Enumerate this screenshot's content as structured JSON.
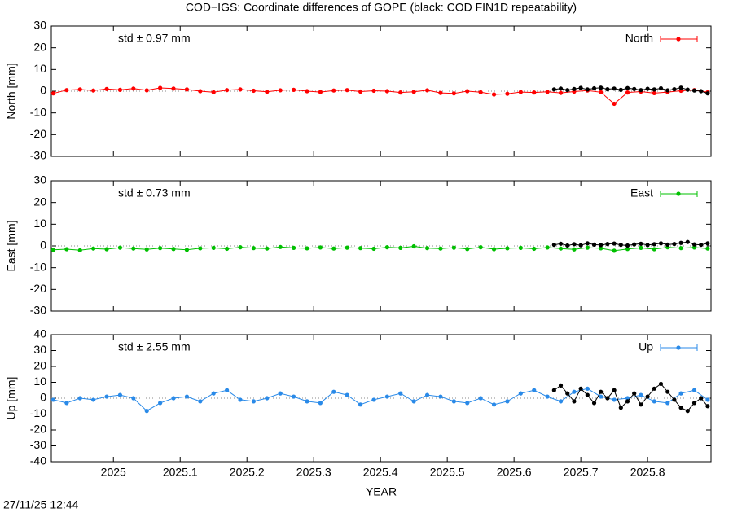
{
  "title": "COD−IGS: Coordinate differences of GOPE (black: COD FIN1D repeatability)",
  "timestamp": "27/11/25 12:44",
  "chart_data": [
    {
      "type": "line",
      "ylabel": "North [mm]",
      "annotation": "std ± 0.97 mm",
      "xlim": [
        2024.907,
        2025.895
      ],
      "xticks": [
        2025,
        2025.1,
        2025.2,
        2025.3,
        2025.4,
        2025.5,
        2025.6,
        2025.7,
        2025.8
      ],
      "ylim": [
        -30,
        30
      ],
      "yticks": [
        -30,
        -20,
        -10,
        0,
        10,
        20,
        30
      ],
      "legend": "top-right",
      "series": [
        {
          "name": "North",
          "color": "#ff0000",
          "x": [
            2024.91,
            2024.93,
            2024.95,
            2024.97,
            2024.99,
            2025.01,
            2025.03,
            2025.05,
            2025.07,
            2025.09,
            2025.11,
            2025.13,
            2025.15,
            2025.17,
            2025.19,
            2025.21,
            2025.23,
            2025.25,
            2025.27,
            2025.29,
            2025.31,
            2025.33,
            2025.35,
            2025.37,
            2025.39,
            2025.41,
            2025.43,
            2025.45,
            2025.47,
            2025.49,
            2025.51,
            2025.53,
            2025.55,
            2025.57,
            2025.59,
            2025.61,
            2025.63,
            2025.65,
            2025.67,
            2025.69,
            2025.71,
            2025.73,
            2025.75,
            2025.77,
            2025.79,
            2025.81,
            2025.83,
            2025.85,
            2025.87,
            2025.89
          ],
          "values": [
            -1,
            0.5,
            0.8,
            0.3,
            1,
            0.6,
            1.2,
            0.4,
            1.5,
            1.2,
            0.8,
            0,
            -0.5,
            0.5,
            0.8,
            0.2,
            -0.3,
            0.4,
            0.6,
            0,
            -0.4,
            0.3,
            0.5,
            -0.2,
            0.2,
            0,
            -0.6,
            -0.3,
            0.4,
            -0.8,
            -1,
            0,
            -0.5,
            -1.5,
            -1.2,
            -0.4,
            -0.6,
            -0.3,
            -0.8,
            -0.2,
            0.3,
            -0.5,
            -5.8,
            -0.6,
            -0.2,
            -0.9,
            -0.4,
            0.2,
            0.5,
            -0.5
          ]
        },
        {
          "color": "#000000",
          "x": [
            2025.66,
            2025.67,
            2025.68,
            2025.69,
            2025.7,
            2025.71,
            2025.72,
            2025.73,
            2025.74,
            2025.75,
            2025.76,
            2025.77,
            2025.78,
            2025.79,
            2025.8,
            2025.81,
            2025.82,
            2025.83,
            2025.84,
            2025.85,
            2025.86,
            2025.87,
            2025.88,
            2025.89
          ],
          "values": [
            0.8,
            1.2,
            0.5,
            1,
            1.5,
            0.8,
            1.3,
            1.6,
            0.9,
            1.2,
            0.6,
            1.4,
            1,
            0.5,
            1.1,
            0.8,
            1.3,
            0.4,
            0.9,
            1.6,
            0.7,
            0.3,
            0,
            -1
          ]
        }
      ]
    },
    {
      "type": "line",
      "ylabel": "East [mm]",
      "annotation": "std ± 0.73 mm",
      "xlim": [
        2024.907,
        2025.895
      ],
      "xticks": [
        2025,
        2025.1,
        2025.2,
        2025.3,
        2025.4,
        2025.5,
        2025.6,
        2025.7,
        2025.8
      ],
      "ylim": [
        -30,
        30
      ],
      "yticks": [
        -30,
        -20,
        -10,
        0,
        10,
        20,
        30
      ],
      "legend": "top-right",
      "series": [
        {
          "name": "East",
          "color": "#00c000",
          "x": [
            2024.91,
            2024.93,
            2024.95,
            2024.97,
            2024.99,
            2025.01,
            2025.03,
            2025.05,
            2025.07,
            2025.09,
            2025.11,
            2025.13,
            2025.15,
            2025.17,
            2025.19,
            2025.21,
            2025.23,
            2025.25,
            2025.27,
            2025.29,
            2025.31,
            2025.33,
            2025.35,
            2025.37,
            2025.39,
            2025.41,
            2025.43,
            2025.45,
            2025.47,
            2025.49,
            2025.51,
            2025.53,
            2025.55,
            2025.57,
            2025.59,
            2025.61,
            2025.63,
            2025.65,
            2025.67,
            2025.69,
            2025.71,
            2025.73,
            2025.75,
            2025.77,
            2025.79,
            2025.81,
            2025.83,
            2025.85,
            2025.87,
            2025.89
          ],
          "values": [
            -1.8,
            -1.5,
            -2,
            -1.2,
            -1.5,
            -0.8,
            -1.2,
            -1.6,
            -1,
            -1.4,
            -1.8,
            -1.1,
            -0.9,
            -1.3,
            -0.6,
            -1,
            -1.2,
            -0.5,
            -0.9,
            -1.1,
            -0.7,
            -1.2,
            -0.8,
            -1,
            -1.3,
            -0.6,
            -0.9,
            -0.2,
            -1,
            -1.2,
            -0.8,
            -1.4,
            -0.6,
            -1.5,
            -1.1,
            -0.9,
            -1.3,
            -0.7,
            -1.2,
            -1.6,
            -0.8,
            -1.1,
            -2.2,
            -1.4,
            -0.9,
            -1.5,
            -0.6,
            -1,
            -0.7,
            -1.2
          ]
        },
        {
          "color": "#000000",
          "x": [
            2025.66,
            2025.67,
            2025.68,
            2025.69,
            2025.7,
            2025.71,
            2025.72,
            2025.73,
            2025.74,
            2025.75,
            2025.76,
            2025.77,
            2025.78,
            2025.79,
            2025.8,
            2025.81,
            2025.82,
            2025.83,
            2025.84,
            2025.85,
            2025.86,
            2025.87,
            2025.88,
            2025.89
          ],
          "values": [
            0.5,
            1,
            0.2,
            0.8,
            0.3,
            1.2,
            0.6,
            0.4,
            0.9,
            1.1,
            0.5,
            0.2,
            0.7,
            1,
            0.4,
            0.8,
            1.2,
            0.6,
            0.9,
            1.4,
            1.8,
            0.7,
            0.5,
            1.2
          ]
        }
      ]
    },
    {
      "type": "line",
      "ylabel": "Up [mm]",
      "annotation": "std ± 2.55 mm",
      "xlabel": "YEAR",
      "xlim": [
        2024.907,
        2025.895
      ],
      "xticks": [
        2025,
        2025.1,
        2025.2,
        2025.3,
        2025.4,
        2025.5,
        2025.6,
        2025.7,
        2025.8
      ],
      "ylim": [
        -40,
        40
      ],
      "yticks": [
        -40,
        -30,
        -20,
        -10,
        0,
        10,
        20,
        30,
        40
      ],
      "legend": "top-right",
      "series": [
        {
          "name": "Up",
          "color": "#2a8ae8",
          "x": [
            2024.91,
            2024.93,
            2024.95,
            2024.97,
            2024.99,
            2025.01,
            2025.03,
            2025.05,
            2025.07,
            2025.09,
            2025.11,
            2025.13,
            2025.15,
            2025.17,
            2025.19,
            2025.21,
            2025.23,
            2025.25,
            2025.27,
            2025.29,
            2025.31,
            2025.33,
            2025.35,
            2025.37,
            2025.39,
            2025.41,
            2025.43,
            2025.45,
            2025.47,
            2025.49,
            2025.51,
            2025.53,
            2025.55,
            2025.57,
            2025.59,
            2025.61,
            2025.63,
            2025.65,
            2025.67,
            2025.69,
            2025.71,
            2025.73,
            2025.75,
            2025.77,
            2025.79,
            2025.81,
            2025.83,
            2025.85,
            2025.87,
            2025.89
          ],
          "values": [
            -1,
            -3,
            0,
            -1,
            1,
            2,
            0,
            -8,
            -3,
            0,
            1,
            -2,
            3,
            5,
            -1,
            -2,
            0,
            3,
            1,
            -2,
            -3,
            4,
            2,
            -4,
            -1,
            1,
            3,
            -2,
            2,
            1,
            -2,
            -3,
            0,
            -4,
            -2,
            3,
            5,
            1,
            -2,
            4,
            6,
            1,
            -1,
            0,
            2,
            -2,
            -3,
            3,
            5,
            -1
          ]
        },
        {
          "color": "#000000",
          "x": [
            2025.66,
            2025.67,
            2025.68,
            2025.69,
            2025.7,
            2025.71,
            2025.72,
            2025.73,
            2025.74,
            2025.75,
            2025.76,
            2025.77,
            2025.78,
            2025.79,
            2025.8,
            2025.81,
            2025.82,
            2025.83,
            2025.84,
            2025.85,
            2025.86,
            2025.87,
            2025.88,
            2025.89
          ],
          "values": [
            5,
            8,
            3,
            -2,
            6,
            2,
            -3,
            4,
            0,
            5,
            -6,
            -2,
            3,
            -4,
            1,
            6,
            9,
            4,
            -1,
            -6,
            -8,
            -3,
            0,
            -5
          ]
        }
      ]
    }
  ]
}
